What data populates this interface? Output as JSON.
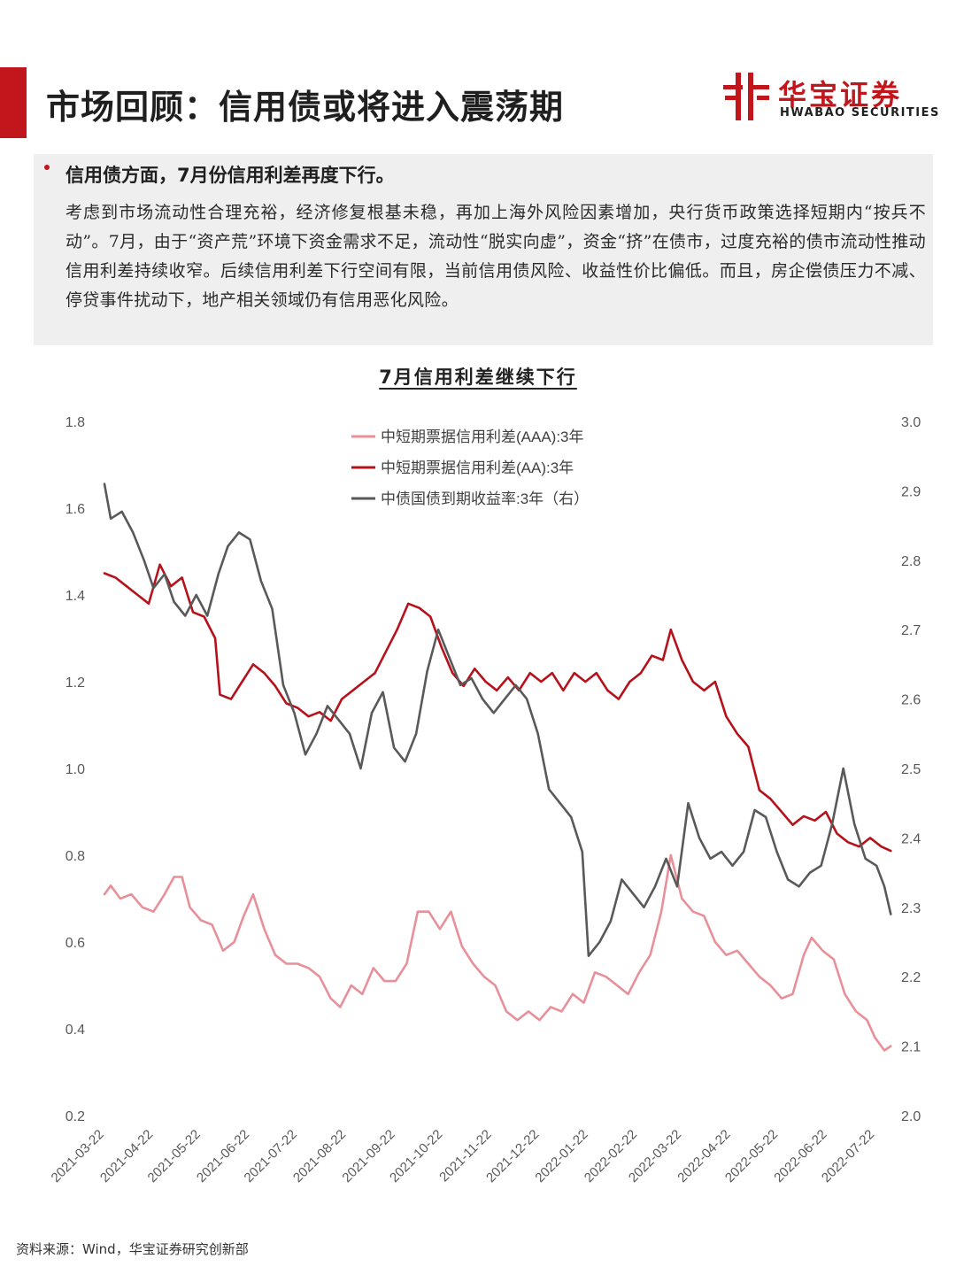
{
  "header": {
    "title": "市场回顾：信用债或将进入震荡期",
    "logo": {
      "name_cn": "华宝证券",
      "name_en": "HWABAO SECURITIES",
      "brand_color": "#c0161c",
      "icon": "hwabao-logo-mark-icon"
    }
  },
  "summary": {
    "heading": "信用债方面，7月份信用利差再度下行。",
    "body": "考虑到市场流动性合理充裕，经济修复根基未稳，再加上海外风险因素增加，央行货币政策选择短期内“按兵不动”。7月，由于“资产荒”环境下资金需求不足，流动性“脱实向虚”，资金“挤”在债市，过度充裕的债市流动性推动信用利差持续收窄。后续信用利差下行空间有限，当前信用债风险、收益性价比偏低。而且，房企偿债压力不减、停贷事件扰动下，地产相关领域仍有信用恶化风险。"
  },
  "source": "资料来源：Wind，华宝证券研究创新部",
  "chart_data": {
    "type": "line",
    "title": "7月信用利差继续下行",
    "xlabel": "",
    "ylabel": "",
    "ylim": [
      0.2,
      1.8
    ],
    "y2lim": [
      2.0,
      3.0
    ],
    "y_ticks": [
      "0.2",
      "0.4",
      "0.6",
      "0.8",
      "1.0",
      "1.2",
      "1.4",
      "1.6",
      "1.8"
    ],
    "y2_ticks": [
      "2.0",
      "2.1",
      "2.2",
      "2.3",
      "2.4",
      "2.5",
      "2.6",
      "2.7",
      "2.8",
      "2.9",
      "3.0"
    ],
    "x_ticks": [
      "2021-03-22",
      "2021-04-22",
      "2021-05-22",
      "2021-06-22",
      "2021-07-22",
      "2021-08-22",
      "2021-09-22",
      "2021-10-22",
      "2021-11-22",
      "2021-12-22",
      "2022-01-22",
      "2022-02-22",
      "2022-03-22",
      "2022-04-22",
      "2022-05-22",
      "2022-06-22",
      "2022-07-22"
    ],
    "grid": false,
    "legend_position": "top-center",
    "series": [
      {
        "name": "中短期票据信用利差(AAA):3年",
        "axis": "left",
        "color": "#e8909a",
        "points": [
          [
            "2021-03-22",
            0.71
          ],
          [
            "2021-03-26",
            0.73
          ],
          [
            "2021-04-01",
            0.7
          ],
          [
            "2021-04-08",
            0.71
          ],
          [
            "2021-04-15",
            0.68
          ],
          [
            "2021-04-22",
            0.67
          ],
          [
            "2021-04-29",
            0.71
          ],
          [
            "2021-05-05",
            0.75
          ],
          [
            "2021-05-10",
            0.75
          ],
          [
            "2021-05-15",
            0.68
          ],
          [
            "2021-05-22",
            0.65
          ],
          [
            "2021-05-29",
            0.64
          ],
          [
            "2021-06-05",
            0.58
          ],
          [
            "2021-06-12",
            0.6
          ],
          [
            "2021-06-18",
            0.66
          ],
          [
            "2021-06-24",
            0.71
          ],
          [
            "2021-07-01",
            0.63
          ],
          [
            "2021-07-08",
            0.57
          ],
          [
            "2021-07-15",
            0.55
          ],
          [
            "2021-07-22",
            0.55
          ],
          [
            "2021-07-29",
            0.54
          ],
          [
            "2021-08-05",
            0.52
          ],
          [
            "2021-08-12",
            0.47
          ],
          [
            "2021-08-18",
            0.45
          ],
          [
            "2021-08-25",
            0.5
          ],
          [
            "2021-09-01",
            0.48
          ],
          [
            "2021-09-08",
            0.54
          ],
          [
            "2021-09-15",
            0.51
          ],
          [
            "2021-09-22",
            0.51
          ],
          [
            "2021-09-29",
            0.55
          ],
          [
            "2021-10-06",
            0.67
          ],
          [
            "2021-10-13",
            0.67
          ],
          [
            "2021-10-20",
            0.63
          ],
          [
            "2021-10-27",
            0.67
          ],
          [
            "2021-11-03",
            0.59
          ],
          [
            "2021-11-10",
            0.55
          ],
          [
            "2021-11-17",
            0.52
          ],
          [
            "2021-11-24",
            0.5
          ],
          [
            "2021-12-01",
            0.44
          ],
          [
            "2021-12-08",
            0.42
          ],
          [
            "2021-12-15",
            0.44
          ],
          [
            "2021-12-22",
            0.42
          ],
          [
            "2021-12-29",
            0.45
          ],
          [
            "2022-01-05",
            0.44
          ],
          [
            "2022-01-12",
            0.48
          ],
          [
            "2022-01-19",
            0.46
          ],
          [
            "2022-01-26",
            0.53
          ],
          [
            "2022-02-02",
            0.52
          ],
          [
            "2022-02-09",
            0.5
          ],
          [
            "2022-02-16",
            0.48
          ],
          [
            "2022-02-23",
            0.53
          ],
          [
            "2022-03-02",
            0.57
          ],
          [
            "2022-03-09",
            0.67
          ],
          [
            "2022-03-15",
            0.8
          ],
          [
            "2022-03-22",
            0.7
          ],
          [
            "2022-03-29",
            0.67
          ],
          [
            "2022-04-05",
            0.66
          ],
          [
            "2022-04-12",
            0.6
          ],
          [
            "2022-04-19",
            0.57
          ],
          [
            "2022-04-26",
            0.58
          ],
          [
            "2022-05-03",
            0.55
          ],
          [
            "2022-05-10",
            0.52
          ],
          [
            "2022-05-17",
            0.5
          ],
          [
            "2022-05-24",
            0.47
          ],
          [
            "2022-05-31",
            0.48
          ],
          [
            "2022-06-07",
            0.57
          ],
          [
            "2022-06-12",
            0.61
          ],
          [
            "2022-06-19",
            0.58
          ],
          [
            "2022-06-26",
            0.56
          ],
          [
            "2022-07-03",
            0.48
          ],
          [
            "2022-07-10",
            0.44
          ],
          [
            "2022-07-17",
            0.42
          ],
          [
            "2022-07-22",
            0.38
          ],
          [
            "2022-07-28",
            0.35
          ],
          [
            "2022-08-01",
            0.36
          ]
        ]
      },
      {
        "name": "中短期票据信用利差(AA):3年",
        "axis": "left",
        "color": "#b5121b",
        "points": [
          [
            "2021-03-22",
            1.45
          ],
          [
            "2021-03-29",
            1.44
          ],
          [
            "2021-04-05",
            1.42
          ],
          [
            "2021-04-12",
            1.4
          ],
          [
            "2021-04-19",
            1.38
          ],
          [
            "2021-04-26",
            1.47
          ],
          [
            "2021-05-03",
            1.42
          ],
          [
            "2021-05-10",
            1.44
          ],
          [
            "2021-05-17",
            1.36
          ],
          [
            "2021-05-24",
            1.35
          ],
          [
            "2021-05-31",
            1.3
          ],
          [
            "2021-06-03",
            1.17
          ],
          [
            "2021-06-10",
            1.16
          ],
          [
            "2021-06-17",
            1.2
          ],
          [
            "2021-06-24",
            1.24
          ],
          [
            "2021-07-01",
            1.22
          ],
          [
            "2021-07-08",
            1.19
          ],
          [
            "2021-07-15",
            1.15
          ],
          [
            "2021-07-22",
            1.14
          ],
          [
            "2021-07-29",
            1.12
          ],
          [
            "2021-08-05",
            1.13
          ],
          [
            "2021-08-12",
            1.11
          ],
          [
            "2021-08-19",
            1.16
          ],
          [
            "2021-08-26",
            1.18
          ],
          [
            "2021-09-02",
            1.2
          ],
          [
            "2021-09-09",
            1.22
          ],
          [
            "2021-09-16",
            1.27
          ],
          [
            "2021-09-23",
            1.32
          ],
          [
            "2021-09-30",
            1.38
          ],
          [
            "2021-10-07",
            1.37
          ],
          [
            "2021-10-14",
            1.35
          ],
          [
            "2021-10-21",
            1.28
          ],
          [
            "2021-10-28",
            1.22
          ],
          [
            "2021-11-04",
            1.19
          ],
          [
            "2021-11-11",
            1.23
          ],
          [
            "2021-11-18",
            1.2
          ],
          [
            "2021-11-25",
            1.18
          ],
          [
            "2021-12-02",
            1.21
          ],
          [
            "2021-12-09",
            1.18
          ],
          [
            "2021-12-16",
            1.22
          ],
          [
            "2021-12-23",
            1.2
          ],
          [
            "2021-12-30",
            1.22
          ],
          [
            "2022-01-06",
            1.18
          ],
          [
            "2022-01-13",
            1.22
          ],
          [
            "2022-01-20",
            1.2
          ],
          [
            "2022-01-27",
            1.22
          ],
          [
            "2022-02-03",
            1.18
          ],
          [
            "2022-02-10",
            1.16
          ],
          [
            "2022-02-17",
            1.2
          ],
          [
            "2022-02-24",
            1.22
          ],
          [
            "2022-03-03",
            1.26
          ],
          [
            "2022-03-10",
            1.25
          ],
          [
            "2022-03-15",
            1.32
          ],
          [
            "2022-03-22",
            1.25
          ],
          [
            "2022-03-29",
            1.2
          ],
          [
            "2022-04-05",
            1.18
          ],
          [
            "2022-04-12",
            1.2
          ],
          [
            "2022-04-19",
            1.12
          ],
          [
            "2022-04-26",
            1.08
          ],
          [
            "2022-05-03",
            1.05
          ],
          [
            "2022-05-10",
            0.95
          ],
          [
            "2022-05-17",
            0.93
          ],
          [
            "2022-05-24",
            0.9
          ],
          [
            "2022-05-31",
            0.87
          ],
          [
            "2022-06-07",
            0.89
          ],
          [
            "2022-06-14",
            0.88
          ],
          [
            "2022-06-21",
            0.9
          ],
          [
            "2022-06-28",
            0.85
          ],
          [
            "2022-07-05",
            0.83
          ],
          [
            "2022-07-12",
            0.82
          ],
          [
            "2022-07-19",
            0.84
          ],
          [
            "2022-07-26",
            0.82
          ],
          [
            "2022-08-01",
            0.81
          ]
        ]
      },
      {
        "name": "中债国债到期收益率:3年（右）",
        "axis": "right",
        "color": "#595959",
        "points": [
          [
            "2021-03-22",
            2.91
          ],
          [
            "2021-03-26",
            2.86
          ],
          [
            "2021-04-02",
            2.87
          ],
          [
            "2021-04-09",
            2.84
          ],
          [
            "2021-04-16",
            2.8
          ],
          [
            "2021-04-22",
            2.76
          ],
          [
            "2021-04-29",
            2.78
          ],
          [
            "2021-05-05",
            2.74
          ],
          [
            "2021-05-12",
            2.72
          ],
          [
            "2021-05-19",
            2.75
          ],
          [
            "2021-05-26",
            2.72
          ],
          [
            "2021-06-02",
            2.78
          ],
          [
            "2021-06-08",
            2.82
          ],
          [
            "2021-06-15",
            2.84
          ],
          [
            "2021-06-22",
            2.83
          ],
          [
            "2021-06-29",
            2.77
          ],
          [
            "2021-07-06",
            2.73
          ],
          [
            "2021-07-13",
            2.62
          ],
          [
            "2021-07-20",
            2.58
          ],
          [
            "2021-07-27",
            2.52
          ],
          [
            "2021-08-03",
            2.55
          ],
          [
            "2021-08-10",
            2.59
          ],
          [
            "2021-08-17",
            2.57
          ],
          [
            "2021-08-24",
            2.55
          ],
          [
            "2021-08-31",
            2.5
          ],
          [
            "2021-09-07",
            2.58
          ],
          [
            "2021-09-14",
            2.61
          ],
          [
            "2021-09-21",
            2.53
          ],
          [
            "2021-09-28",
            2.51
          ],
          [
            "2021-10-05",
            2.55
          ],
          [
            "2021-10-12",
            2.64
          ],
          [
            "2021-10-19",
            2.7
          ],
          [
            "2021-10-26",
            2.66
          ],
          [
            "2021-11-02",
            2.62
          ],
          [
            "2021-11-09",
            2.63
          ],
          [
            "2021-11-16",
            2.6
          ],
          [
            "2021-11-23",
            2.58
          ],
          [
            "2021-11-30",
            2.6
          ],
          [
            "2021-12-07",
            2.62
          ],
          [
            "2021-12-14",
            2.6
          ],
          [
            "2021-12-21",
            2.55
          ],
          [
            "2021-12-28",
            2.47
          ],
          [
            "2022-01-04",
            2.45
          ],
          [
            "2022-01-11",
            2.43
          ],
          [
            "2022-01-18",
            2.38
          ],
          [
            "2022-01-22",
            2.23
          ],
          [
            "2022-01-29",
            2.25
          ],
          [
            "2022-02-05",
            2.28
          ],
          [
            "2022-02-12",
            2.34
          ],
          [
            "2022-02-19",
            2.32
          ],
          [
            "2022-02-26",
            2.3
          ],
          [
            "2022-03-05",
            2.33
          ],
          [
            "2022-03-12",
            2.37
          ],
          [
            "2022-03-19",
            2.33
          ],
          [
            "2022-03-26",
            2.45
          ],
          [
            "2022-04-02",
            2.4
          ],
          [
            "2022-04-09",
            2.37
          ],
          [
            "2022-04-16",
            2.38
          ],
          [
            "2022-04-23",
            2.36
          ],
          [
            "2022-04-30",
            2.38
          ],
          [
            "2022-05-07",
            2.44
          ],
          [
            "2022-05-14",
            2.43
          ],
          [
            "2022-05-21",
            2.38
          ],
          [
            "2022-05-28",
            2.34
          ],
          [
            "2022-06-04",
            2.33
          ],
          [
            "2022-06-11",
            2.35
          ],
          [
            "2022-06-18",
            2.36
          ],
          [
            "2022-06-25",
            2.42
          ],
          [
            "2022-07-02",
            2.5
          ],
          [
            "2022-07-09",
            2.42
          ],
          [
            "2022-07-16",
            2.37
          ],
          [
            "2022-07-23",
            2.36
          ],
          [
            "2022-07-28",
            2.33
          ],
          [
            "2022-08-01",
            2.29
          ]
        ]
      }
    ]
  }
}
